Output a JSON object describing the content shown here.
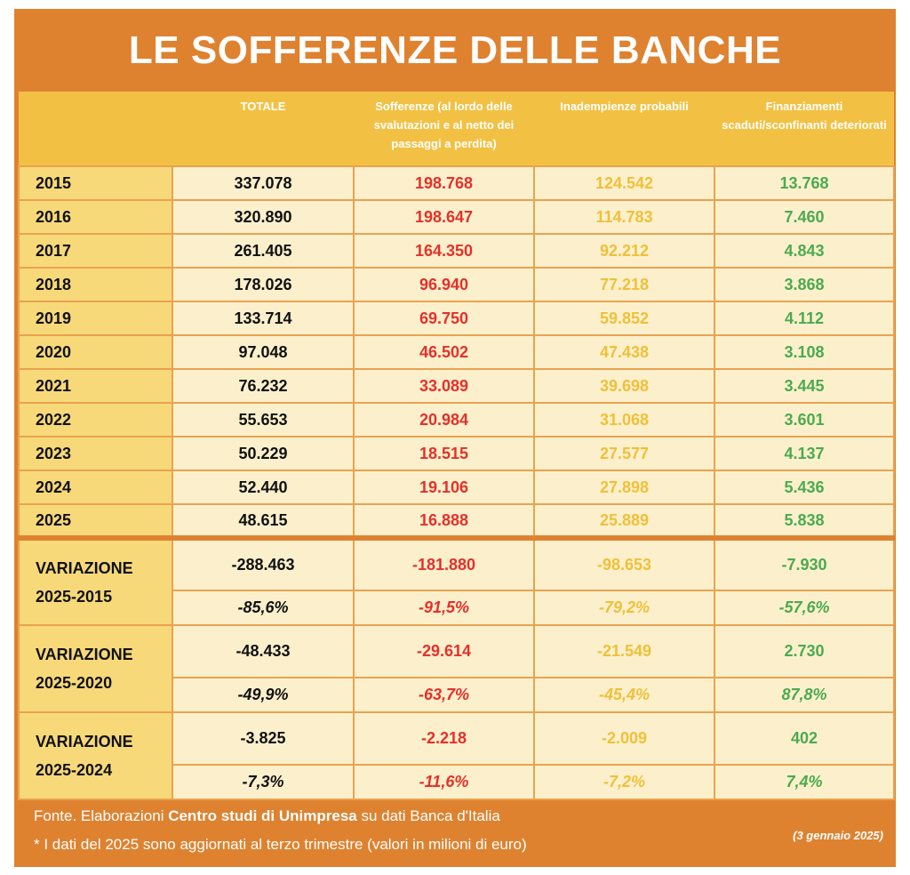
{
  "title": "LE SOFFERENZE DELLE BANCHE",
  "columns": [
    "TOTALE",
    "Sofferenze (al lordo delle svalutazioni e al netto dei passaggi a perdita)",
    "Inadempienze probabili",
    "Finanziamenti scaduti/sconfinanti deteriorati"
  ],
  "colors": {
    "frame": "#DE8230",
    "header": "#F2C144",
    "total": "#111111",
    "sofferenze": "#E5302B",
    "inadempienze": "#F0C03A",
    "finanziamenti": "#4CAA50"
  },
  "rows": [
    {
      "year": "2015",
      "values": [
        "337.078",
        "198.768",
        "124.542",
        "13.768"
      ]
    },
    {
      "year": "2016",
      "values": [
        "320.890",
        "198.647",
        "114.783",
        "7.460"
      ]
    },
    {
      "year": "2017",
      "values": [
        "261.405",
        "164.350",
        "92.212",
        "4.843"
      ]
    },
    {
      "year": "2018",
      "values": [
        "178.026",
        "96.940",
        "77.218",
        "3.868"
      ]
    },
    {
      "year": "2019",
      "values": [
        "133.714",
        "69.750",
        "59.852",
        "4.112"
      ]
    },
    {
      "year": "2020",
      "values": [
        "97.048",
        "46.502",
        "47.438",
        "3.108"
      ]
    },
    {
      "year": "2021",
      "values": [
        "76.232",
        "33.089",
        "39.698",
        "3.445"
      ]
    },
    {
      "year": "2022",
      "values": [
        "55.653",
        "20.984",
        "31.068",
        "3.601"
      ]
    },
    {
      "year": "2023",
      "values": [
        "50.229",
        "18.515",
        "27.577",
        "4.137"
      ]
    },
    {
      "year": "2024",
      "values": [
        "52.440",
        "19.106",
        "27.898",
        "5.436"
      ]
    },
    {
      "year": "2025",
      "values": [
        "48.615",
        "16.888",
        "25.889",
        "5.838"
      ]
    }
  ],
  "variations": [
    {
      "label1": "VARIAZIONE",
      "label2": "2025-2015",
      "abs": [
        "-288.463",
        "-181.880",
        "-98.653",
        "-7.930"
      ],
      "pct": [
        "-85,6%",
        "-91,5%",
        "-79,2%",
        "-57,6%"
      ]
    },
    {
      "label1": "VARIAZIONE",
      "label2": "2025-2020",
      "abs": [
        "-48.433",
        "-29.614",
        "-21.549",
        "2.730"
      ],
      "pct": [
        "-49,9%",
        "-63,7%",
        "-45,4%",
        "87,8%"
      ]
    },
    {
      "label1": "VARIAZIONE",
      "label2": "2025-2024",
      "abs": [
        "-3.825",
        "-2.218",
        "-2.009",
        "402"
      ],
      "pct": [
        "-7,3%",
        "-11,6%",
        "-7,2%",
        "7,4%"
      ]
    }
  ],
  "footer": {
    "source_prefix": "Fonte. Elaborazioni ",
    "source_bold": "Centro studi di Unimpresa",
    "source_suffix": " su dati Banca d'Italia",
    "note": "* I dati del 2025 sono aggiornati al terzo trimestre (valori in milioni di euro)",
    "date": "(3 gennaio 2025)"
  }
}
